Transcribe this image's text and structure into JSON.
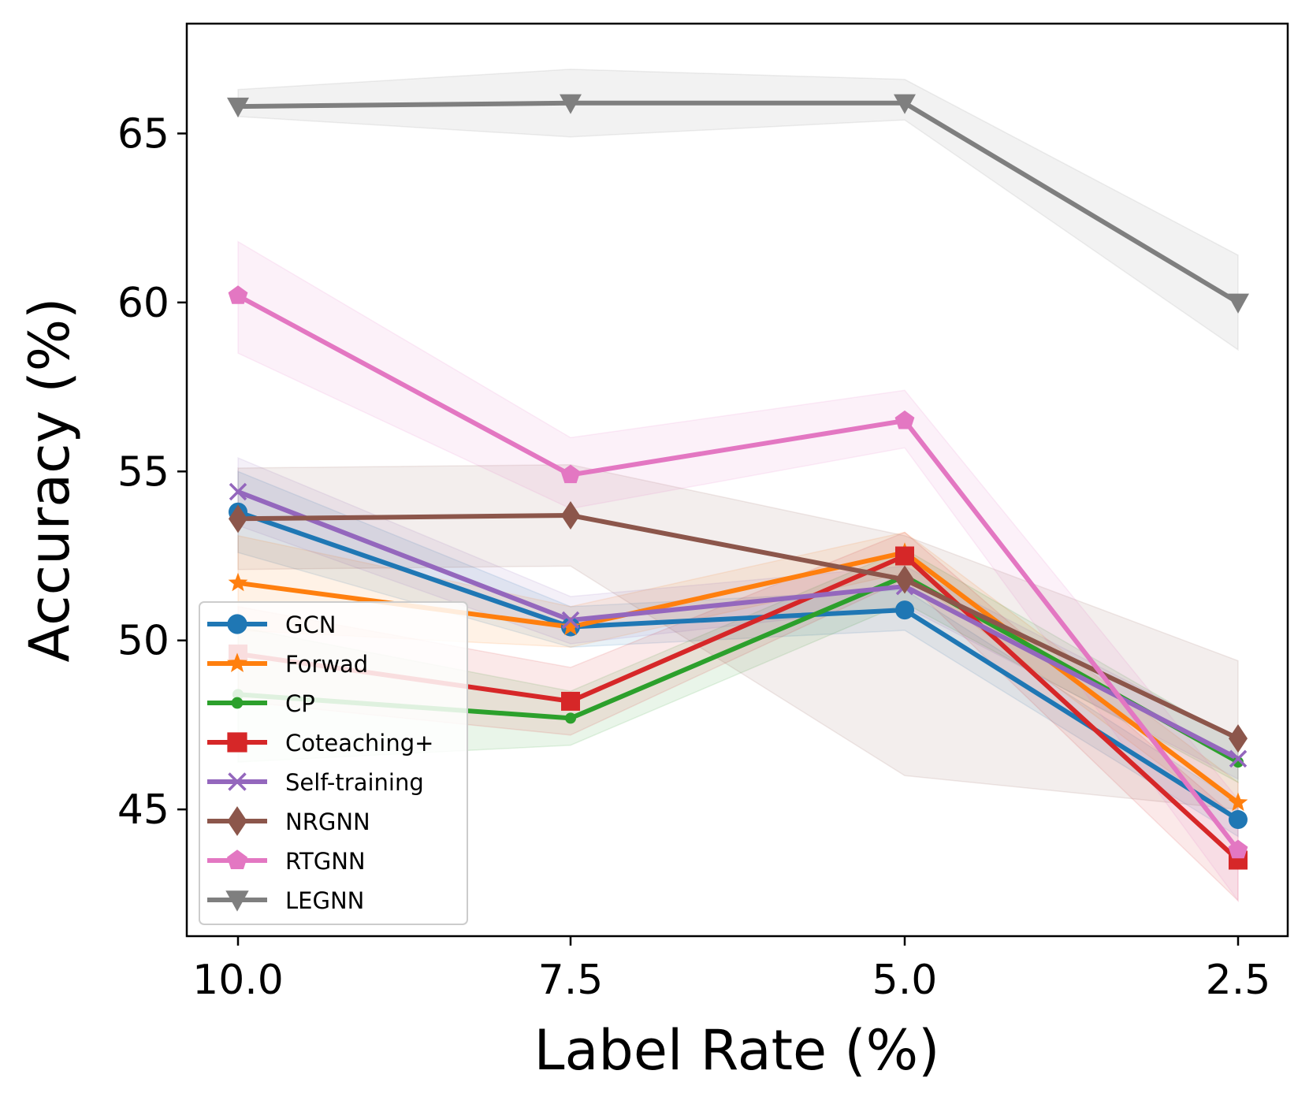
{
  "chart_data": {
    "type": "line",
    "title": "",
    "xlabel": "Label Rate (%)",
    "ylabel": "Accuracy (%)",
    "categories": [
      "10.0",
      "7.5",
      "5.0",
      "2.5"
    ],
    "ylim": [
      41.25,
      68.25
    ],
    "yticks": [
      "45",
      "50",
      "55",
      "60",
      "65"
    ],
    "grid": false,
    "legend_position": "lower-left",
    "series": [
      {
        "name": "GCN",
        "color": "#1f77b4",
        "marker": "circle",
        "values": [
          53.8,
          50.4,
          50.9,
          44.7
        ],
        "lower": [
          52.6,
          49.8,
          50.3,
          44.2
        ],
        "upper": [
          55.0,
          51.0,
          51.5,
          45.2
        ]
      },
      {
        "name": "Forwad",
        "color": "#ff7f0e",
        "marker": "star",
        "values": [
          51.7,
          50.4,
          52.6,
          45.2
        ],
        "lower": [
          50.3,
          49.8,
          52.0,
          44.6
        ],
        "upper": [
          53.1,
          51.0,
          53.2,
          45.8
        ]
      },
      {
        "name": "CP",
        "color": "#2ca02c",
        "marker": "dot",
        "values": [
          48.4,
          47.7,
          51.9,
          46.4
        ],
        "lower": [
          46.4,
          46.9,
          51.1,
          45.8
        ],
        "upper": [
          50.4,
          48.5,
          52.7,
          47.0
        ]
      },
      {
        "name": "Coteaching+",
        "color": "#d62728",
        "marker": "square",
        "values": [
          49.6,
          48.2,
          52.5,
          43.5
        ],
        "lower": [
          48.2,
          47.2,
          51.8,
          42.3
        ],
        "upper": [
          51.0,
          49.2,
          53.2,
          44.7
        ]
      },
      {
        "name": "Self-training",
        "color": "#9467bd",
        "marker": "x",
        "values": [
          54.4,
          50.6,
          51.6,
          46.5
        ],
        "lower": [
          53.4,
          49.9,
          51.0,
          45.9
        ],
        "upper": [
          55.4,
          51.3,
          52.2,
          47.1
        ]
      },
      {
        "name": "NRGNN",
        "color": "#8c564b",
        "marker": "diamond",
        "values": [
          53.6,
          53.7,
          51.8,
          47.1
        ],
        "lower": [
          52.1,
          52.2,
          46.0,
          45.0
        ],
        "upper": [
          55.1,
          55.2,
          53.1,
          49.4
        ]
      },
      {
        "name": "RTGNN",
        "color": "#e377c2",
        "marker": "pentagon",
        "values": [
          60.2,
          54.9,
          56.5,
          43.8
        ],
        "lower": [
          58.5,
          53.9,
          55.7,
          42.3
        ],
        "upper": [
          61.8,
          56.0,
          57.4,
          45.3
        ]
      },
      {
        "name": "LEGNN",
        "color": "#7f7f7f",
        "marker": "triangle-down",
        "values": [
          65.8,
          65.9,
          65.9,
          60.0
        ],
        "lower": [
          65.5,
          64.9,
          65.4,
          58.6
        ],
        "upper": [
          66.3,
          66.9,
          66.6,
          61.4
        ]
      }
    ]
  }
}
